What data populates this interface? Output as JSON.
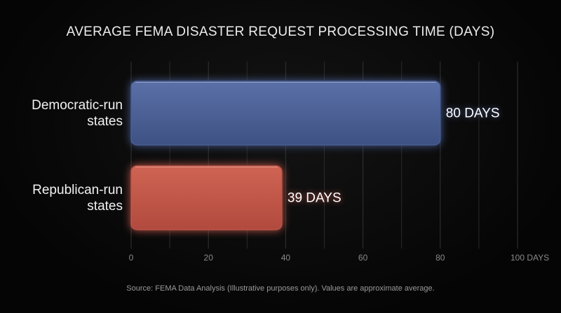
{
  "chart_data": {
    "type": "hbar",
    "title": "AVERAGE FEMA DISASTER REQUEST PROCESSING TIME (DAYS)",
    "categories": [
      "Democratic-run states",
      "Republican-run states"
    ],
    "values": [
      80,
      39
    ],
    "value_labels": [
      "80 DAYS",
      "39 DAYS"
    ],
    "colors": [
      "#4a5f95",
      "#c0574a"
    ],
    "xlim": [
      0,
      100
    ],
    "xticks": [
      0,
      20,
      40,
      60,
      80,
      {
        "value": 100,
        "label": "100 DAYS"
      }
    ],
    "xgrid": [
      10,
      30,
      50,
      70,
      90
    ],
    "grid": true,
    "source": "Source: FEMA Data Analysis (Illustrative purposes only). Values are approximate average."
  }
}
